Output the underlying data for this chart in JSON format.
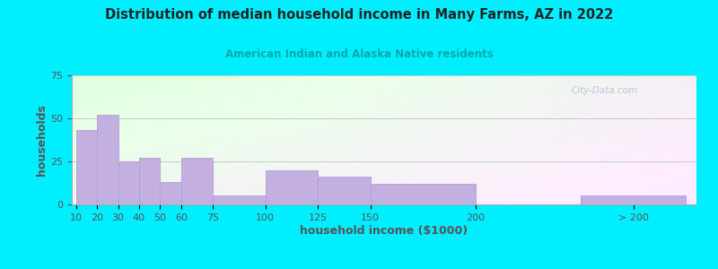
{
  "title": "Distribution of median household income in Many Farms, AZ in 2022",
  "subtitle": "American Indian and Alaska Native residents",
  "xlabel": "household income ($1000)",
  "ylabel": "households",
  "bar_color": "#c4b0e0",
  "bar_edge_color": "#b0a0d0",
  "background_outer": "#00eeff",
  "ylim": [
    0,
    75
  ],
  "yticks": [
    0,
    25,
    50,
    75
  ],
  "values": [
    43,
    52,
    25,
    27,
    13,
    27,
    5,
    20,
    16,
    12,
    0,
    5
  ],
  "bar_lefts": [
    10,
    20,
    30,
    40,
    50,
    60,
    75,
    100,
    125,
    150,
    200,
    250
  ],
  "bar_widths": [
    10,
    10,
    10,
    10,
    10,
    15,
    25,
    25,
    25,
    50,
    50,
    50
  ],
  "xtick_positions": [
    10,
    20,
    30,
    40,
    50,
    60,
    75,
    100,
    125,
    150,
    200,
    275
  ],
  "xtick_labels": [
    "10",
    "20",
    "30",
    "40",
    "50",
    "60",
    "75",
    "100",
    "125",
    "150",
    "200",
    "> 200"
  ],
  "xlim": [
    8,
    305
  ],
  "watermark": "City-Data.com",
  "title_color": "#222222",
  "subtitle_color": "#00aaaa",
  "axis_label_color": "#555555",
  "tick_color": "#555555"
}
